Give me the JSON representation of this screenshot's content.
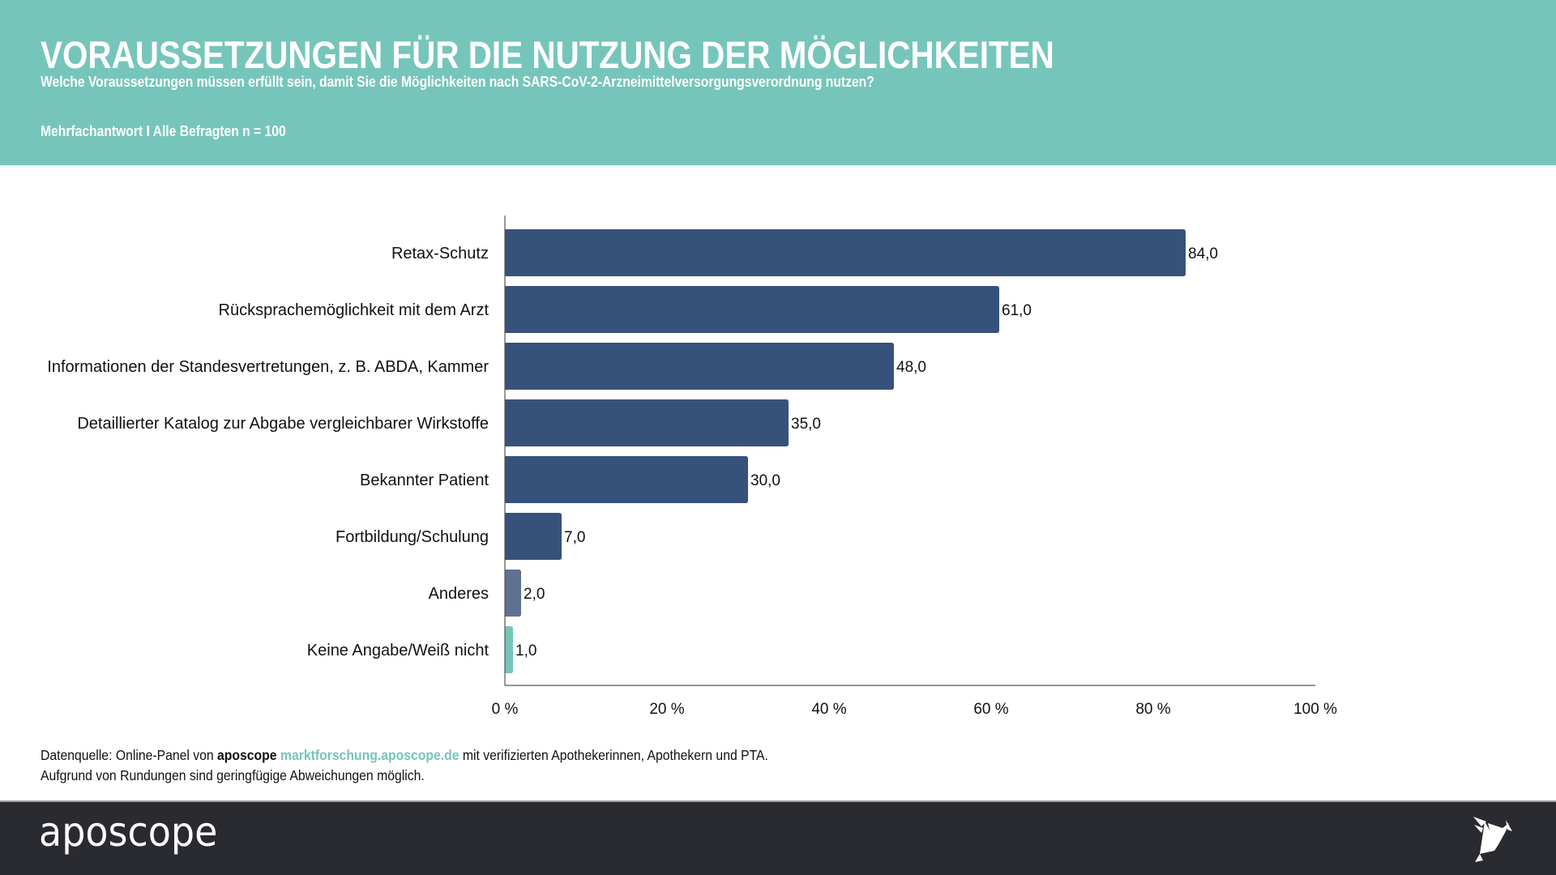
{
  "header": {
    "title": "VORAUSSETZUNGEN FÜR DIE NUTZUNG DER MÖGLICHKEITEN",
    "subtitle": "Welche Voraussetzungen müssen erfüllt sein, damit Sie die Möglichkeiten nach SARS-CoV-2-Arzneimittelversorgungsverordnung nutzen?",
    "note": "Mehrfachantwort I Alle Befragten n = 100"
  },
  "colors": {
    "header_bg": "#76c5bb",
    "bar_primary": "#37527a",
    "bar_other": "#5f7090",
    "bar_no_answer": "#76c5bb",
    "footer_bg": "#2a2b30",
    "link": "#76c5bb"
  },
  "chart_data": {
    "type": "bar",
    "orientation": "horizontal",
    "title": "VORAUSSETZUNGEN FÜR DIE NUTZUNG DER MÖGLICHKEITEN",
    "xlabel": "",
    "ylabel": "",
    "xlim": [
      0,
      100
    ],
    "x_ticks": [
      0,
      20,
      40,
      60,
      80,
      100
    ],
    "x_tick_labels": [
      "0 %",
      "20 %",
      "40 %",
      "60 %",
      "80 %",
      "100 %"
    ],
    "grid": false,
    "legend": "none",
    "categories": [
      "Retax-Schutz",
      "Rücksprachemöglichkeit mit dem Arzt",
      "Informationen der Standesvertretungen, z. B. ABDA, Kammer",
      "Detaillierter Katalog zur Abgabe vergleichbarer Wirkstoffe",
      "Bekannter Patient",
      "Fortbildung/Schulung",
      "Anderes",
      "Keine Angabe/Weiß nicht"
    ],
    "values": [
      84.0,
      61.0,
      48.0,
      35.0,
      30.0,
      7.0,
      2.0,
      1.0
    ],
    "value_labels": [
      "84,0",
      "61,0",
      "48,0",
      "35,0",
      "30,0",
      "7,0",
      "2,0",
      "1,0"
    ],
    "bar_colors": [
      "#37527a",
      "#37527a",
      "#37527a",
      "#37527a",
      "#37527a",
      "#37527a",
      "#5f7090",
      "#76c5bb"
    ]
  },
  "source": {
    "prefix": "Datenquelle: Online-Panel von ",
    "brand": "aposcope",
    "link": "marktforschung.aposcope.de",
    "suffix": " mit verifizierten Apothekerinnen, Apothekern und PTA.",
    "line2": "Aufgrund von Rundungen sind geringfügige Abweichungen möglich."
  },
  "footer": {
    "logo_text": "aposcope",
    "logo_icon": "origami-bird-icon"
  }
}
